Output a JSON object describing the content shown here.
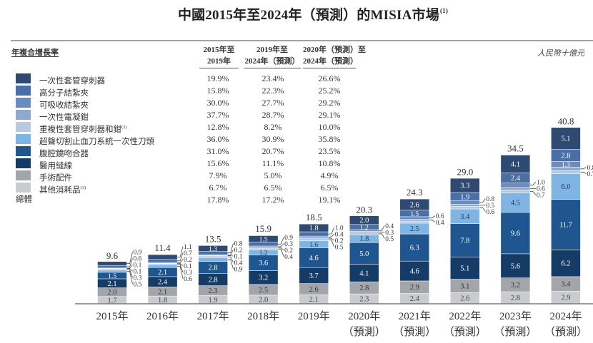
{
  "title": "中國2015年至2024年（預測）的MISIA市場",
  "title_note": "(1)",
  "unit": "人民幣十億元",
  "cagr_table": {
    "heading": "年複合增長率",
    "columns": [
      {
        "line1": "2015年至",
        "line2": "2019年"
      },
      {
        "line1": "2019年至",
        "line2": "2024年（預測）"
      },
      {
        "line1": "2020年（預測）至",
        "line2": "2024年（預測）"
      }
    ],
    "rows": [
      {
        "label": "一次性套管穿刺器",
        "note": "",
        "color": "#2e4a70",
        "rates": [
          "19.9%",
          "23.4%",
          "26.6%"
        ]
      },
      {
        "label": "高分子結紮夾",
        "note": "",
        "color": "#4a6fa6",
        "rates": [
          "15.8%",
          "22.3%",
          "25.2%"
        ]
      },
      {
        "label": "可吸收結紮夾",
        "note": "",
        "color": "#6a8dc1",
        "rates": [
          "30.0%",
          "27.7%",
          "29.2%"
        ]
      },
      {
        "label": "一次性電凝鉗",
        "note": "",
        "color": "#8fa9cd",
        "rates": [
          "37.7%",
          "28.7%",
          "29.1%"
        ]
      },
      {
        "label": "重複性套管穿刺器和鉗",
        "note": "(2)",
        "color": "#b8cae0",
        "rates": [
          "12.8%",
          "8.2%",
          "10.0%"
        ]
      },
      {
        "label": "超聲切割止血刀系統一次性刀頭",
        "note": "",
        "color": "#80b4e2",
        "rates": [
          "36.0%",
          "30.9%",
          "35.8%"
        ]
      },
      {
        "label": "腹腔鏡吻合器",
        "note": "",
        "color": "#1f5690",
        "rates": [
          "31.0%",
          "20.7%",
          "23.5%"
        ]
      },
      {
        "label": "醫用縫線",
        "note": "",
        "color": "#153c66",
        "rates": [
          "15.6%",
          "11.1%",
          "10.8%"
        ]
      },
      {
        "label": "手術配件",
        "note": "",
        "color": "#a3a5aa",
        "rates": [
          "7.9%",
          "5.0%",
          "4.9%"
        ]
      },
      {
        "label": "其他消耗品",
        "note": "(3)",
        "color": "#c9cbce",
        "rates": [
          "6.7%",
          "6.5%",
          "6.5%"
        ]
      }
    ],
    "total": {
      "label": "總體",
      "rates": [
        "17.8%",
        "17.2%",
        "19.1%"
      ]
    }
  },
  "chart_data": {
    "type": "bar",
    "stacked": true,
    "title": "中國2015年至2024年（預測）的MISIA市場",
    "xlabel": "",
    "ylabel": "人民幣十億元",
    "ylim": [
      0,
      44
    ],
    "grid": false,
    "legend_position": "top-left",
    "categories": [
      "2015年",
      "2016年",
      "2017年",
      "2018年",
      "2019年",
      "2020年",
      "2021年",
      "2022年",
      "2023年",
      "2024年"
    ],
    "category_sublabels": [
      "",
      "",
      "",
      "",
      "",
      "（預測）",
      "（預測）",
      "（預測）",
      "（預測）",
      "（預測）"
    ],
    "totals": [
      9.6,
      11.4,
      13.5,
      15.9,
      18.5,
      20.3,
      24.3,
      29.0,
      34.5,
      40.8
    ],
    "series": [
      {
        "name": "其他消耗品",
        "color": "#c9cbce",
        "label_color": "#444444",
        "values": [
          1.7,
          1.8,
          1.9,
          2.0,
          2.1,
          2.3,
          2.4,
          2.6,
          2.8,
          2.9
        ]
      },
      {
        "name": "手術配件",
        "color": "#a3a5aa",
        "label_color": "#333333",
        "values": [
          2.0,
          2.1,
          2.3,
          2.5,
          2.6,
          2.8,
          2.9,
          3.1,
          3.2,
          3.4
        ]
      },
      {
        "name": "醫用縫線",
        "color": "#153c66",
        "label_color": "#ffffff",
        "values": [
          2.1,
          2.4,
          2.8,
          3.2,
          3.7,
          4.1,
          4.6,
          5.1,
          5.6,
          6.2
        ]
      },
      {
        "name": "腹腔鏡吻合器",
        "color": "#1f5690",
        "label_color": "#ffffff",
        "values": [
          1.5,
          2.1,
          2.8,
          3.6,
          4.6,
          5.0,
          6.3,
          7.8,
          9.6,
          11.7
        ]
      },
      {
        "name": "超聲切割止血刀系統一次性刀頭",
        "color": "#80b4e2",
        "label_color": "#1b3b66",
        "values": [
          0.5,
          0.6,
          0.9,
          1.2,
          1.6,
          1.8,
          2.5,
          3.4,
          4.5,
          6.0
        ]
      },
      {
        "name": "重複性套管穿刺器和鉗",
        "color": "#b8cae0",
        "label_color": "#2a4a70",
        "values": [
          0.3,
          0.3,
          0.4,
          0.4,
          0.5,
          0.5,
          0.5,
          0.6,
          0.7,
          0.7
        ]
      },
      {
        "name": "一次性電凝鉗",
        "color": "#8fa9cd",
        "label_color": "#ffffff",
        "values": [
          0.1,
          0.1,
          0.1,
          0.2,
          0.2,
          0.3,
          0.4,
          0.5,
          0.6,
          0.8
        ]
      },
      {
        "name": "可吸收結紮夾",
        "color": "#6a8dc1",
        "label_color": "#ffffff",
        "values": [
          0.1,
          0.2,
          0.2,
          0.3,
          0.4,
          0.4,
          0.6,
          0.8,
          1.0,
          1.3
        ]
      },
      {
        "name": "高分子結紮夾",
        "color": "#4a6fa6",
        "label_color": "#ffffff",
        "values": [
          0.6,
          0.7,
          0.8,
          0.9,
          1.0,
          1.2,
          1.5,
          1.9,
          2.4,
          2.8
        ]
      },
      {
        "name": "一次性套管穿刺器",
        "color": "#2e4a70",
        "label_color": "#ffffff",
        "values": [
          0.9,
          1.1,
          1.3,
          1.5,
          1.8,
          2.0,
          2.6,
          3.3,
          4.1,
          5.1
        ]
      }
    ],
    "unlabeled_points": [
      {
        "category": "2021年",
        "series": "重複性套管穿刺器和鉗"
      }
    ]
  }
}
